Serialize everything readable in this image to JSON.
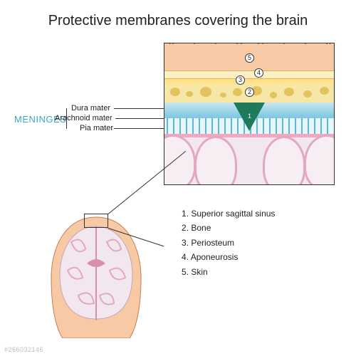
{
  "title": "Protective membranes covering the brain",
  "meninges": {
    "heading": "MENINGES",
    "layers": [
      {
        "label": "Dura mater",
        "color": "#79c6e0"
      },
      {
        "label": "Arachnoid mater",
        "color": "#e8f6fb"
      },
      {
        "label": "Pia mater",
        "color": "#f4a6c3"
      }
    ]
  },
  "numbered": [
    {
      "n": "1",
      "label": "Superior sagittal sinus"
    },
    {
      "n": "2",
      "label": "Bone"
    },
    {
      "n": "3",
      "label": "Periosteum"
    },
    {
      "n": "4",
      "label": "Aponeurosis"
    },
    {
      "n": "5",
      "label": "Skin"
    }
  ],
  "detail_layers": {
    "skin_color": "#f7c9a4",
    "aponeurosis_color": "#fff0c4",
    "periosteum_color": "#ffe28a",
    "bone_color": "#f6e7a6",
    "dura_color": "#79c6e0",
    "arachnoid_color": "#e8f6fb",
    "pia_color": "#f4a6c3",
    "cortex_color": "#f2e7ee",
    "sinus_color": "#1f7a5c",
    "hair_color": "#5a3a1a"
  },
  "legend_prefix": ". ",
  "watermark": "#266032146"
}
